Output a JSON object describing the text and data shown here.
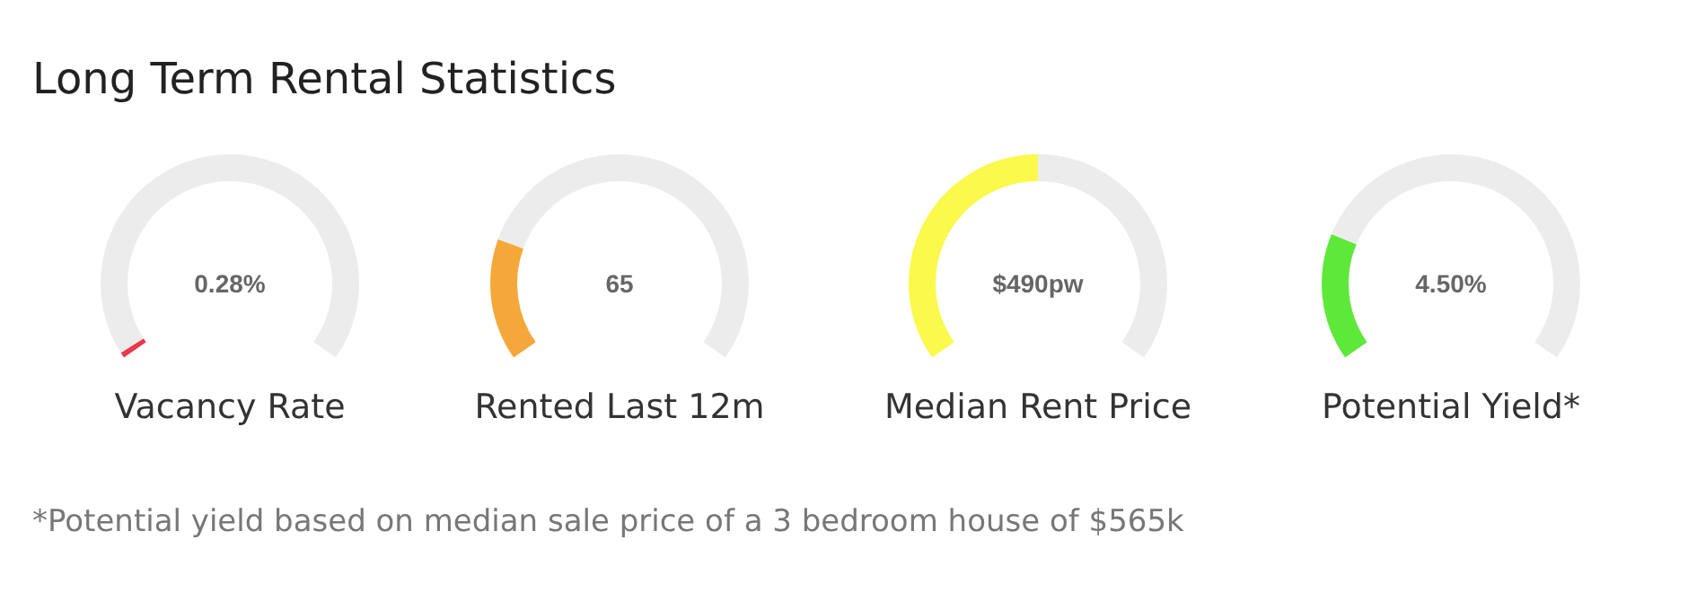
{
  "chart_data": [
    {
      "type": "donut",
      "title": "Long Term Rental Statistics",
      "xlabel": "Vacancy Rate",
      "categories": [
        null,
        null
      ],
      "values": [
        1,
        99
      ],
      "colors": [
        "#e8384f",
        "#ececec"
      ],
      "annotations": [
        "0.28%",
        "*Potential yield based on median sale price of a 3 bedroom house of $565k"
      ]
    },
    {
      "type": "donut",
      "xlabel": "Rented Last 12m",
      "categories": [
        null,
        null
      ],
      "values": [
        22,
        78
      ],
      "colors": [
        "#f5a83a",
        "#ececec"
      ],
      "annotations": [
        "65"
      ]
    },
    {
      "type": "donut",
      "xlabel": "Median Rent Price",
      "categories": [
        null,
        null
      ],
      "values": [
        50,
        50
      ],
      "colors": [
        "#faf94c",
        "#ececec"
      ],
      "annotations": [
        "$490pw"
      ]
    },
    {
      "type": "donut",
      "xlabel": "Potential Yield*",
      "categories": [
        null,
        null
      ],
      "values": [
        23,
        77
      ],
      "colors": [
        "#5ee83a",
        "#ececec"
      ],
      "annotations": [
        "4.50%"
      ]
    }
  ]
}
